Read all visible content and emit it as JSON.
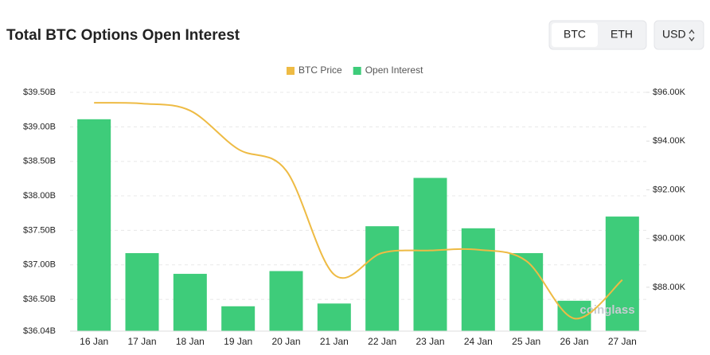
{
  "chart_data": {
    "type": "bar",
    "title": "Total BTC Options Open Interest",
    "categories": [
      "16 Jan",
      "17 Jan",
      "18 Jan",
      "19 Jan",
      "20 Jan",
      "21 Jan",
      "22 Jan",
      "23 Jan",
      "24 Jan",
      "25 Jan",
      "26 Jan",
      "27 Jan"
    ],
    "series": [
      {
        "name": "BTC Price",
        "type": "line",
        "axis": "y2",
        "color": "#eebb44",
        "values": [
          95.57,
          95.54,
          95.25,
          93.67,
          92.79,
          88.52,
          89.41,
          89.51,
          89.54,
          89.08,
          86.72,
          88.3
        ]
      },
      {
        "name": "Open Interest",
        "type": "bar",
        "color": "#3ecc7a",
        "values": [
          39.11,
          37.17,
          36.87,
          36.4,
          36.91,
          36.44,
          37.56,
          38.26,
          37.53,
          37.17,
          36.48,
          37.7
        ]
      }
    ],
    "ylim": [
      36.04,
      39.5
    ],
    "yticks": [
      {
        "value": 36.04,
        "label": "$36.04B"
      },
      {
        "value": 36.5,
        "label": "$36.50B"
      },
      {
        "value": 37,
        "label": "$37.00B"
      },
      {
        "value": 37.5,
        "label": "$37.50B"
      },
      {
        "value": 38,
        "label": "$38.00B"
      },
      {
        "value": 38.5,
        "label": "$38.50B"
      },
      {
        "value": 39,
        "label": "$39.00B"
      },
      {
        "value": 39.5,
        "label": "$39.50B"
      }
    ],
    "y2lim": [
      86.2,
      96
    ],
    "y2ticks": [
      {
        "value": 88,
        "label": "$88.00K"
      },
      {
        "value": 90,
        "label": "$90.00K"
      },
      {
        "value": 92,
        "label": "$92.00K"
      },
      {
        "value": 94,
        "label": "$94.00K"
      },
      {
        "value": 96,
        "label": "$96.00K"
      }
    ],
    "grid": true,
    "legend": "top",
    "watermark": "coinglass"
  },
  "controls": {
    "coins": [
      "BTC",
      "ETH"
    ],
    "currency": "USD"
  }
}
